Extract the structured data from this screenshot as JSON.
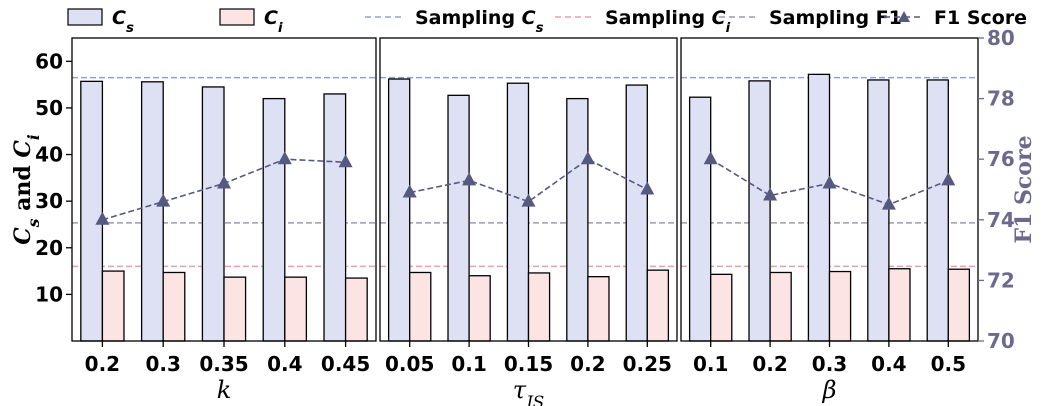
{
  "legend": {
    "items": [
      {
        "key": "cs",
        "text": "C_s",
        "kind": "bar",
        "color": "#dde1f3"
      },
      {
        "key": "ci",
        "text": "C_i",
        "kind": "bar",
        "color": "#fde4e4"
      },
      {
        "key": "sampling_cs",
        "text": "Sampling C_s",
        "kind": "dash",
        "color": "#8ea2d1"
      },
      {
        "key": "sampling_ci",
        "text": "Sampling C_i",
        "kind": "dash",
        "color": "#ea9fac"
      },
      {
        "key": "sampling_f1",
        "text": "Sampling F1",
        "kind": "dash",
        "color": "#9a9ab6"
      },
      {
        "key": "f1",
        "text": "F1 Score",
        "kind": "line",
        "color": "#575a80"
      }
    ]
  },
  "axes": {
    "ylabel": "C_s and C_i",
    "y2label": "F1 Score"
  },
  "chart_data": [
    {
      "type": "bar",
      "xlabel": "k",
      "categories": [
        "0.2",
        "0.3",
        "0.35",
        "0.4",
        "0.45"
      ],
      "series": [
        {
          "name": "C_s",
          "values": [
            55.7,
            55.6,
            54.5,
            52.0,
            53.0
          ]
        },
        {
          "name": "C_i",
          "values": [
            15.0,
            14.7,
            13.7,
            13.7,
            13.5
          ]
        }
      ],
      "f1_series": {
        "name": "F1 Score",
        "values": [
          74.0,
          74.6,
          75.2,
          76.0,
          75.9
        ]
      },
      "reference_lines": {
        "Sampling C_s": 56.5,
        "Sampling C_i": 16.0,
        "Sampling F1": 73.9
      },
      "ylim": [
        0,
        65
      ],
      "y2lim": [
        70,
        80
      ],
      "yticks": [
        10,
        20,
        30,
        40,
        50,
        60
      ],
      "y2ticks": [
        70,
        72,
        74,
        76,
        78,
        80
      ]
    },
    {
      "type": "bar",
      "xlabel": "τ_JS",
      "categories": [
        "0.05",
        "0.1",
        "0.15",
        "0.2",
        "0.25"
      ],
      "series": [
        {
          "name": "C_s",
          "values": [
            56.2,
            52.7,
            55.3,
            52.0,
            54.9
          ]
        },
        {
          "name": "C_i",
          "values": [
            14.7,
            14.0,
            14.6,
            13.8,
            15.2
          ]
        }
      ],
      "f1_series": {
        "name": "F1 Score",
        "values": [
          74.9,
          75.3,
          74.6,
          76.0,
          75.0
        ]
      },
      "reference_lines": {
        "Sampling C_s": 56.5,
        "Sampling C_i": 16.0,
        "Sampling F1": 73.9
      },
      "ylim": [
        0,
        65
      ],
      "y2lim": [
        70,
        80
      ],
      "yticks": [
        10,
        20,
        30,
        40,
        50,
        60
      ],
      "y2ticks": [
        70,
        72,
        74,
        76,
        78,
        80
      ]
    },
    {
      "type": "bar",
      "xlabel": "β",
      "categories": [
        "0.1",
        "0.2",
        "0.3",
        "0.4",
        "0.5"
      ],
      "series": [
        {
          "name": "C_s",
          "values": [
            52.3,
            55.8,
            57.2,
            56.0,
            56.0
          ]
        },
        {
          "name": "C_i",
          "values": [
            14.3,
            14.7,
            14.9,
            15.5,
            15.4
          ]
        }
      ],
      "f1_series": {
        "name": "F1 Score",
        "values": [
          76.0,
          74.8,
          75.2,
          74.5,
          75.3
        ]
      },
      "reference_lines": {
        "Sampling C_s": 56.5,
        "Sampling C_i": 16.0,
        "Sampling F1": 73.9
      },
      "ylim": [
        0,
        65
      ],
      "y2lim": [
        70,
        80
      ],
      "yticks": [
        10,
        20,
        30,
        40,
        50,
        60
      ],
      "y2ticks": [
        70,
        72,
        74,
        76,
        78,
        80
      ]
    }
  ],
  "colors": {
    "cs_fill": "#dde1f3",
    "ci_fill": "#fde4e4",
    "bar_edge": "#000000",
    "sampling_cs": "#8ea2d1",
    "sampling_ci": "#ea9fac",
    "sampling_f1": "#9a9ab6",
    "f1_line": "#575a80",
    "y2_text": "#6b6a8e"
  }
}
